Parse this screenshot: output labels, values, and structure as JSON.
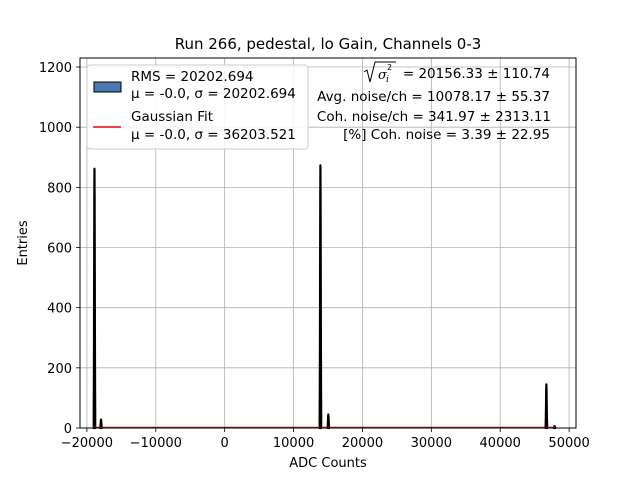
{
  "chart_data": {
    "type": "histogram",
    "title": "Run 266, pedestal, lo Gain, Channels 0-3",
    "xlabel": "ADC Counts",
    "ylabel": "Entries",
    "xlim": [
      -21000,
      51000
    ],
    "ylim": [
      0,
      1230
    ],
    "xticks": [
      -20000,
      -10000,
      0,
      10000,
      20000,
      30000,
      40000,
      50000
    ],
    "xtick_labels": [
      "−20000",
      "−10000",
      "0",
      "10000",
      "20000",
      "30000",
      "40000",
      "50000"
    ],
    "yticks": [
      0,
      200,
      400,
      600,
      800,
      1000,
      1200
    ],
    "ytick_labels": [
      "0",
      "200",
      "400",
      "600",
      "800",
      "1000",
      "1200"
    ],
    "grid": true,
    "peaks": [
      {
        "center": -18900,
        "height": 862
      },
      {
        "center": -17950,
        "height": 28
      },
      {
        "center": 13900,
        "height": 873
      },
      {
        "center": 15050,
        "height": 45
      },
      {
        "center": 46700,
        "height": 145
      },
      {
        "center": 47900,
        "height": 6
      }
    ],
    "series": [
      {
        "name": "RMS = 20202.694",
        "name_line2": "μ = -0.0, σ = 20202.694",
        "color": "#4a7ab0",
        "type": "histogram"
      },
      {
        "name": "Gaussian Fit",
        "name_line2": "μ = -0.0, σ = 36203.521",
        "color": "#e8000b",
        "type": "line"
      }
    ],
    "legend_position": "top-left",
    "annotations": {
      "sqrt_value": "= 20156.33 ± 110.74",
      "avg_noise": "Avg. noise/ch = 10078.17 ± 55.37",
      "coh_noise": "Coh. noise/ch = 341.97 ± 2313.11",
      "coh_percent": "[%] Coh. noise = 3.39 ± 22.95"
    }
  }
}
